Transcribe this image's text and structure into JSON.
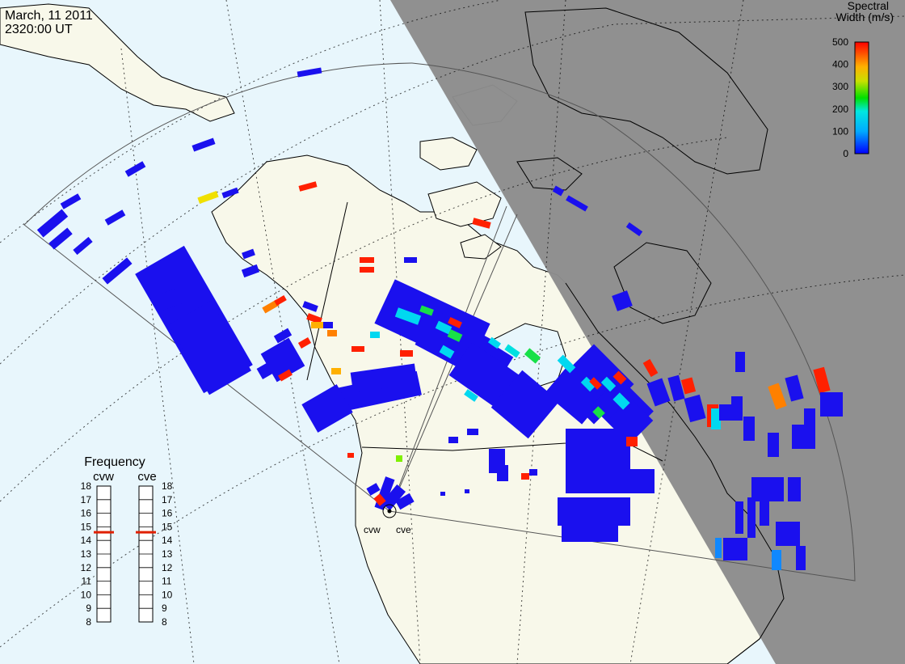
{
  "header": {
    "date": "March, 11 2011",
    "time": "2320:00 UT"
  },
  "colorbar": {
    "title_line1": "Spectral",
    "title_line2": "Width (m/s)",
    "ticks": [
      "500",
      "400",
      "300",
      "200",
      "100",
      "0"
    ]
  },
  "frequency": {
    "title": "Frequency",
    "left_label": "cvw",
    "right_label": "cve",
    "ticks": [
      "18",
      "17",
      "16",
      "15",
      "14",
      "13",
      "12",
      "11",
      "10",
      "9",
      "8"
    ],
    "cvw_value": 14.6,
    "cve_value": 14.6
  },
  "stations": {
    "cvw": "cvw",
    "cve": "cve"
  },
  "colors": {
    "ocean": "#e8f6fc",
    "land": "#f8f8ea",
    "night": "#8c8c8c",
    "scatter_main": "#1a10ee",
    "marker": "#e02000"
  }
}
